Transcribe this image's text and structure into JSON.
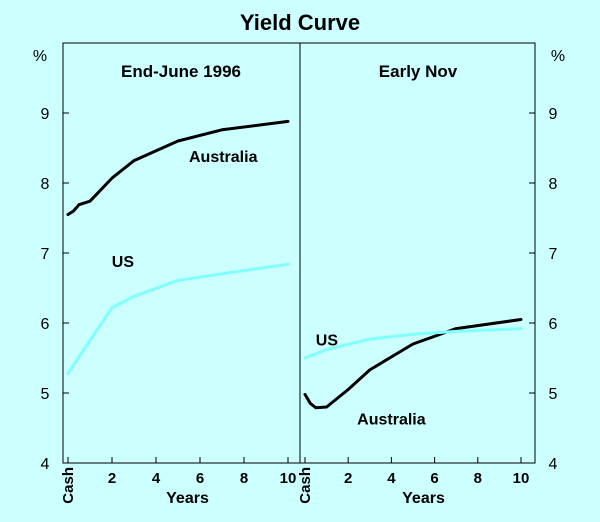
{
  "title": "Yield Curve",
  "unit_left": "%",
  "unit_right": "%",
  "colors": {
    "background": "#ccffff",
    "australia": "#000000",
    "us": "#80ffff",
    "frame": "#000000"
  },
  "chart_data": [
    {
      "type": "line",
      "title": "End-June 1996",
      "xlabel": "Years",
      "ylabel": "%",
      "xlim": [
        0,
        10
      ],
      "ylim": [
        4,
        10
      ],
      "x_tick_labels": [
        "Cash",
        "2",
        "4",
        "6",
        "8",
        "10"
      ],
      "y_tick_labels": [
        "4",
        "5",
        "6",
        "7",
        "8",
        "9"
      ],
      "grid": false,
      "series": [
        {
          "name": "Australia",
          "color": "#000000",
          "points": [
            [
              0,
              7.55
            ],
            [
              0.25,
              7.6
            ],
            [
              0.5,
              7.69
            ],
            [
              1,
              7.74
            ],
            [
              2,
              8.07
            ],
            [
              3,
              8.32
            ],
            [
              5,
              8.6
            ],
            [
              7,
              8.76
            ],
            [
              10,
              8.88
            ]
          ]
        },
        {
          "name": "US",
          "color": "#80ffff",
          "points": [
            [
              0,
              5.28
            ],
            [
              0.25,
              5.4
            ],
            [
              2,
              6.22
            ],
            [
              3,
              6.38
            ],
            [
              5,
              6.61
            ],
            [
              10,
              6.84
            ]
          ]
        }
      ]
    },
    {
      "type": "line",
      "title": "Early Nov",
      "xlabel": "Years",
      "ylabel": "%",
      "xlim": [
        0,
        10
      ],
      "ylim": [
        4,
        10
      ],
      "x_tick_labels": [
        "Cash",
        "2",
        "4",
        "6",
        "8",
        "10"
      ],
      "y_tick_labels": [
        "4",
        "5",
        "6",
        "7",
        "8",
        "9"
      ],
      "grid": false,
      "series": [
        {
          "name": "Australia",
          "color": "#000000",
          "points": [
            [
              0,
              4.98
            ],
            [
              0.25,
              4.85
            ],
            [
              0.5,
              4.79
            ],
            [
              1,
              4.8
            ],
            [
              2,
              5.05
            ],
            [
              3,
              5.33
            ],
            [
              5,
              5.7
            ],
            [
              7,
              5.92
            ],
            [
              10,
              6.05
            ]
          ]
        },
        {
          "name": "US",
          "color": "#80ffff",
          "points": [
            [
              0,
              5.5
            ],
            [
              0.5,
              5.56
            ],
            [
              1,
              5.62
            ],
            [
              3,
              5.77
            ],
            [
              5,
              5.84
            ],
            [
              7,
              5.88
            ],
            [
              10,
              5.92
            ]
          ]
        }
      ]
    }
  ]
}
